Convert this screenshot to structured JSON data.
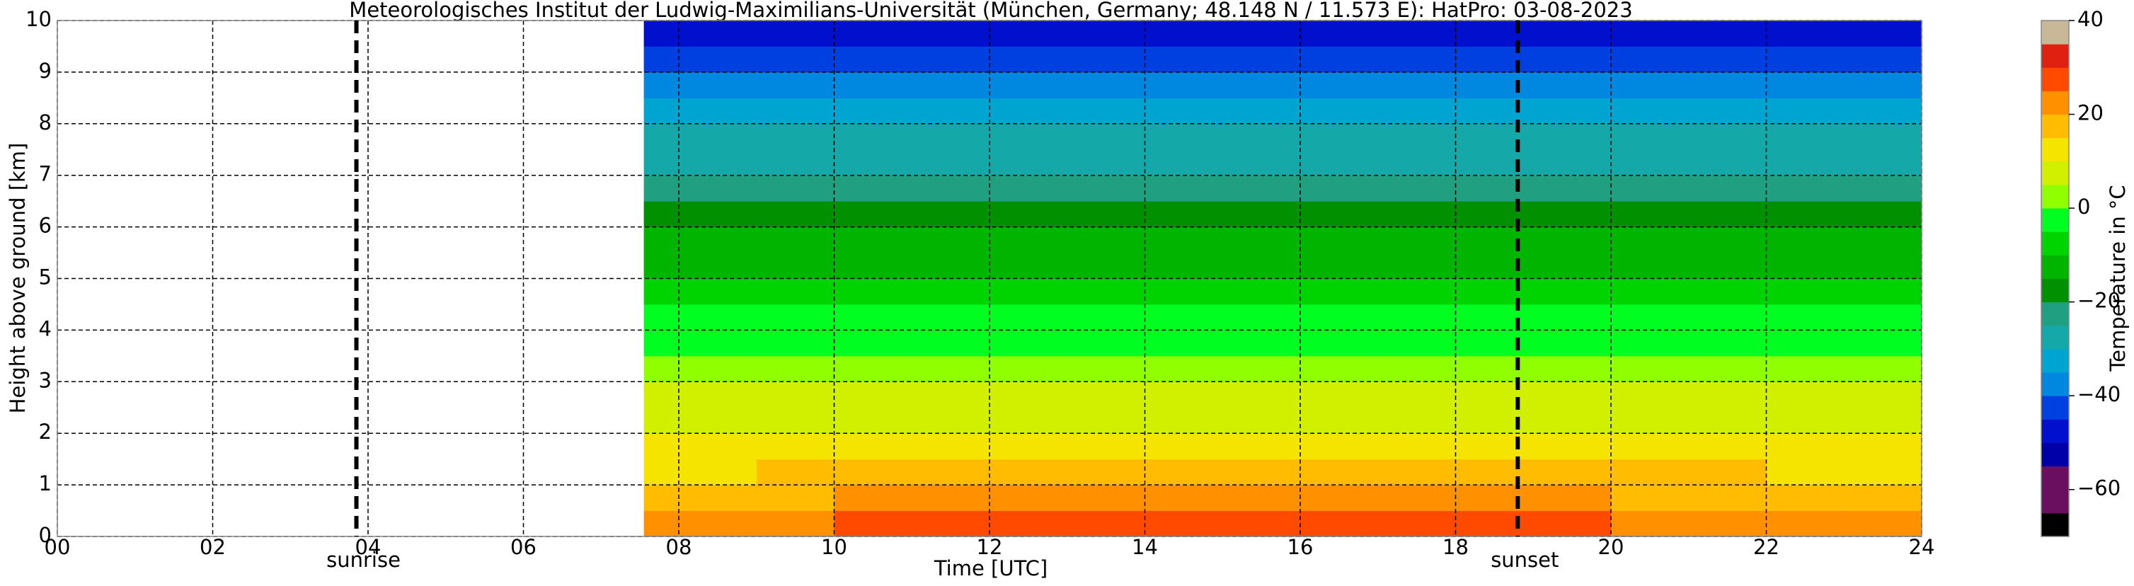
{
  "chart_data": {
    "type": "heatmap",
    "title": "Meteorologisches Institut der Ludwig-Maximilians-Universität (München, Germany; 48.148 N / 11.573 E):    HatPro: 03-08-2023",
    "x_label": "Time [UTC]",
    "y_label": "Height above ground [km]",
    "xlim": [
      0,
      24
    ],
    "ylim": [
      0,
      10
    ],
    "xticks": [
      {
        "value": 0,
        "label": "00"
      },
      {
        "value": 2,
        "label": "02"
      },
      {
        "value": 4,
        "label": "04"
      },
      {
        "value": 6,
        "label": "06"
      },
      {
        "value": 8,
        "label": "08"
      },
      10,
      12,
      14,
      16,
      18,
      20,
      22,
      24
    ],
    "yticks": [
      0,
      1,
      2,
      3,
      4,
      5,
      6,
      7,
      8,
      9,
      10
    ],
    "grid": true,
    "x": [
      7.55,
      9,
      10,
      11,
      12,
      13,
      14,
      15,
      16,
      17,
      18,
      19,
      20,
      21,
      22,
      23
    ],
    "heights": [
      0,
      0.5,
      1,
      1.5,
      2,
      2.5,
      3,
      3.5,
      4,
      4.5,
      5,
      5.5,
      6,
      6.5,
      7,
      7.5,
      8,
      8.5,
      9,
      9.5
    ],
    "z": [
      [
        21,
        23,
        25,
        26,
        27,
        28,
        28,
        29,
        29,
        29,
        27,
        25,
        23,
        22,
        21,
        20
      ],
      [
        18,
        19,
        20,
        21,
        21,
        22,
        22,
        22,
        22,
        22,
        21,
        20,
        19,
        18,
        18,
        17
      ],
      [
        14,
        15,
        16,
        16,
        16,
        16,
        16,
        17,
        17,
        17,
        16,
        16,
        15,
        15,
        14,
        14
      ],
      [
        11,
        11,
        12,
        12,
        12,
        12,
        12,
        12,
        12,
        12,
        12,
        12,
        11,
        11,
        11,
        11
      ],
      [
        8,
        8,
        8,
        8,
        8,
        8,
        8,
        8,
        8,
        8,
        8,
        8,
        8,
        8,
        8,
        8
      ],
      [
        5,
        5,
        5,
        5,
        5,
        5,
        5,
        5,
        5,
        5,
        5,
        5,
        5,
        5,
        5,
        5
      ],
      [
        2,
        2,
        2,
        2,
        2,
        2,
        2,
        2,
        2,
        2,
        2,
        2,
        2,
        2,
        2,
        2
      ],
      [
        -1,
        -1,
        -1,
        -1,
        -1,
        -1,
        -1,
        -1,
        -1,
        -1,
        -1,
        -1,
        -1,
        -1,
        -1,
        -1
      ],
      [
        -5,
        -5,
        -5,
        -5,
        -5,
        -5,
        -5,
        -5,
        -5,
        -5,
        -5,
        -5,
        -5,
        -5,
        -5,
        -5
      ],
      [
        -8,
        -8,
        -8,
        -8,
        -8,
        -8,
        -8,
        -8,
        -8,
        -8,
        -8,
        -8,
        -8,
        -8,
        -8,
        -8
      ],
      [
        -11,
        -11,
        -11,
        -11,
        -11,
        -11,
        -11,
        -11,
        -11,
        -11,
        -11,
        -11,
        -11,
        -11,
        -11,
        -11
      ],
      [
        -14,
        -14,
        -14,
        -14,
        -14,
        -14,
        -14,
        -14,
        -14,
        -14,
        -14,
        -14,
        -14,
        -14,
        -14,
        -14
      ],
      [
        -18,
        -18,
        -18,
        -18,
        -18,
        -18,
        -18,
        -18,
        -18,
        -18,
        -18,
        -18,
        -18,
        -18,
        -18,
        -18
      ],
      [
        -22,
        -22,
        -22,
        -22,
        -22,
        -22,
        -22,
        -22,
        -22,
        -22,
        -22,
        -22,
        -22,
        -22,
        -22,
        -22
      ],
      [
        -26,
        -26,
        -26,
        -26,
        -26,
        -26,
        -26,
        -26,
        -26,
        -26,
        -26,
        -26,
        -26,
        -26,
        -26,
        -26
      ],
      [
        -29,
        -29,
        -29,
        -29,
        -29,
        -29,
        -29,
        -29,
        -29,
        -29,
        -29,
        -29,
        -29,
        -29,
        -29,
        -29
      ],
      [
        -33,
        -33,
        -33,
        -33,
        -33,
        -33,
        -33,
        -33,
        -33,
        -33,
        -33,
        -33,
        -33,
        -33,
        -33,
        -33
      ],
      [
        -37,
        -37,
        -37,
        -37,
        -37,
        -37,
        -37,
        -37,
        -37,
        -37,
        -37,
        -37,
        -37,
        -37,
        -37,
        -37
      ],
      [
        -42,
        -42,
        -42,
        -42,
        -42,
        -42,
        -42,
        -42,
        -42,
        -42,
        -42,
        -42,
        -42,
        -42,
        -42,
        -42
      ],
      [
        -48,
        -48,
        -48,
        -48,
        -48,
        -48,
        -48,
        -48,
        -48,
        -48,
        -48,
        -48,
        -48,
        -48,
        -48,
        -48
      ]
    ],
    "annotations": [
      {
        "text": "sunrise",
        "x": 3.85
      },
      {
        "text": "sunset",
        "x": 18.8
      }
    ],
    "colorbar": {
      "label": "Temperature in °C",
      "lim": [
        -70,
        40
      ],
      "ticks": [
        {
          "value": -60,
          "label": "−60"
        },
        {
          "value": -40,
          "label": "−40"
        },
        {
          "value": -20,
          "label": "−20"
        },
        0,
        20,
        40
      ],
      "colors": [
        "#000000",
        "#6a0f5f",
        "#6a0f5f",
        "#0000a8",
        "#0010cc",
        "#0040e0",
        "#0088e0",
        "#00a4d0",
        "#14a8a8",
        "#20a080",
        "#009000",
        "#00b400",
        "#00d400",
        "#00ff20",
        "#90ff00",
        "#d0f000",
        "#f4e400",
        "#ffbc00",
        "#ff9000",
        "#ff4a00",
        "#e02010",
        "#c8b898"
      ]
    }
  }
}
